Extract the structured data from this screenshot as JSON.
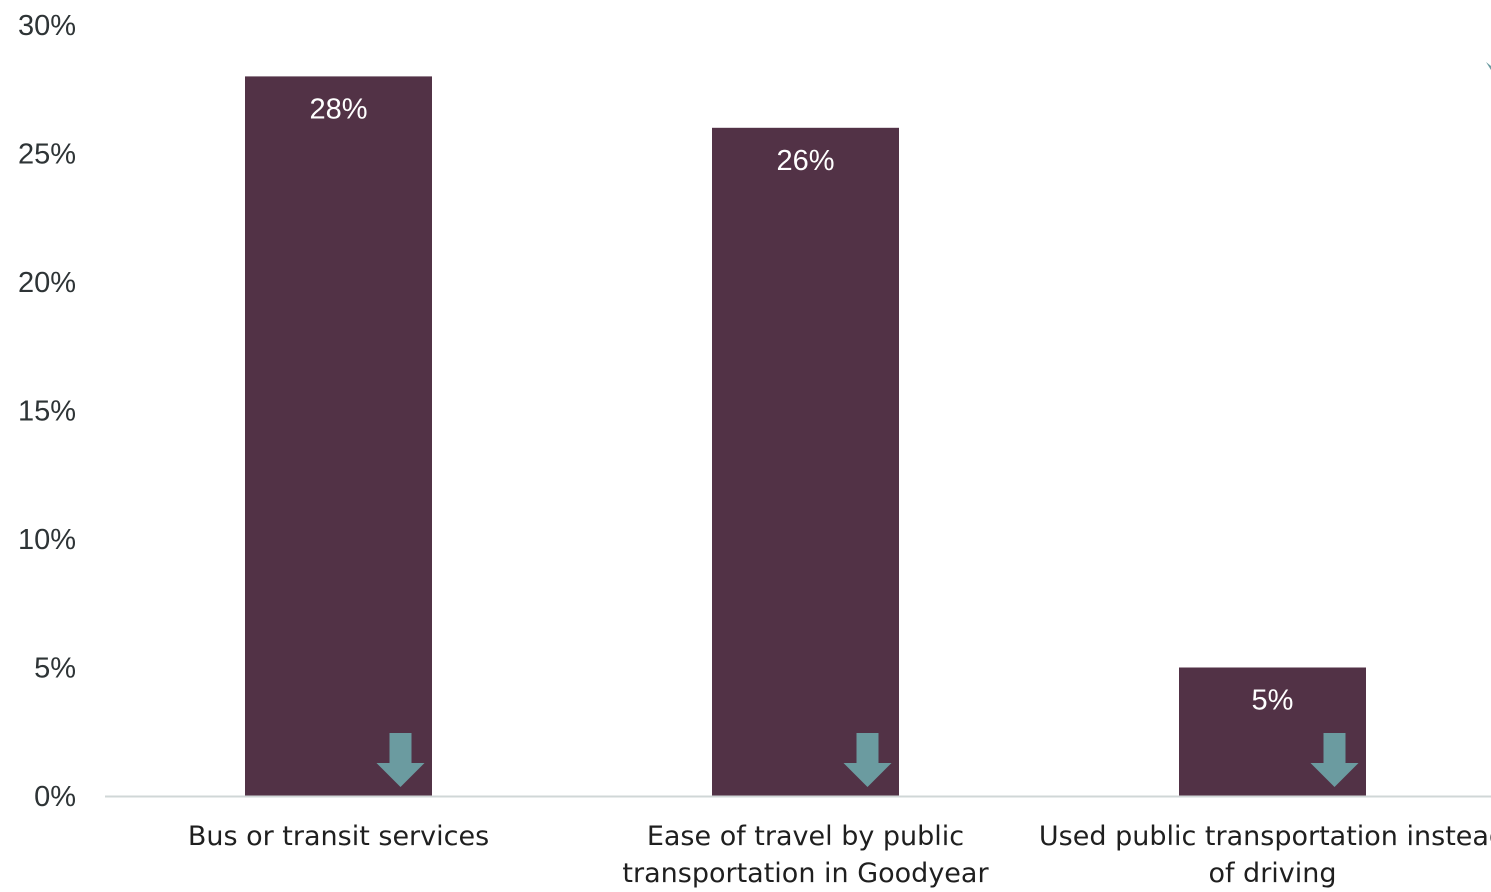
{
  "chart_data": {
    "type": "bar",
    "categories": [
      [
        "Bus or transit services"
      ],
      [
        "Ease of travel by public",
        "transportation in Goodyear"
      ],
      [
        "Used public transportation instead",
        "of driving"
      ]
    ],
    "values": [
      28,
      26,
      5
    ],
    "data_labels": [
      "28%",
      "26%",
      "5%"
    ],
    "ylim": [
      0,
      30
    ],
    "yticks": [
      0,
      5,
      10,
      15,
      20,
      25,
      30
    ],
    "ytick_labels": [
      "0%",
      "5%",
      "10%",
      "15%",
      "20%",
      "25%",
      "30%"
    ],
    "trend_markers": [
      "down-arrow",
      "down-arrow",
      "down-arrow"
    ],
    "grid": false,
    "colors": {
      "bar": "#523246",
      "arrow": "#6b9ba0",
      "axis": "#d0d7d7"
    }
  }
}
